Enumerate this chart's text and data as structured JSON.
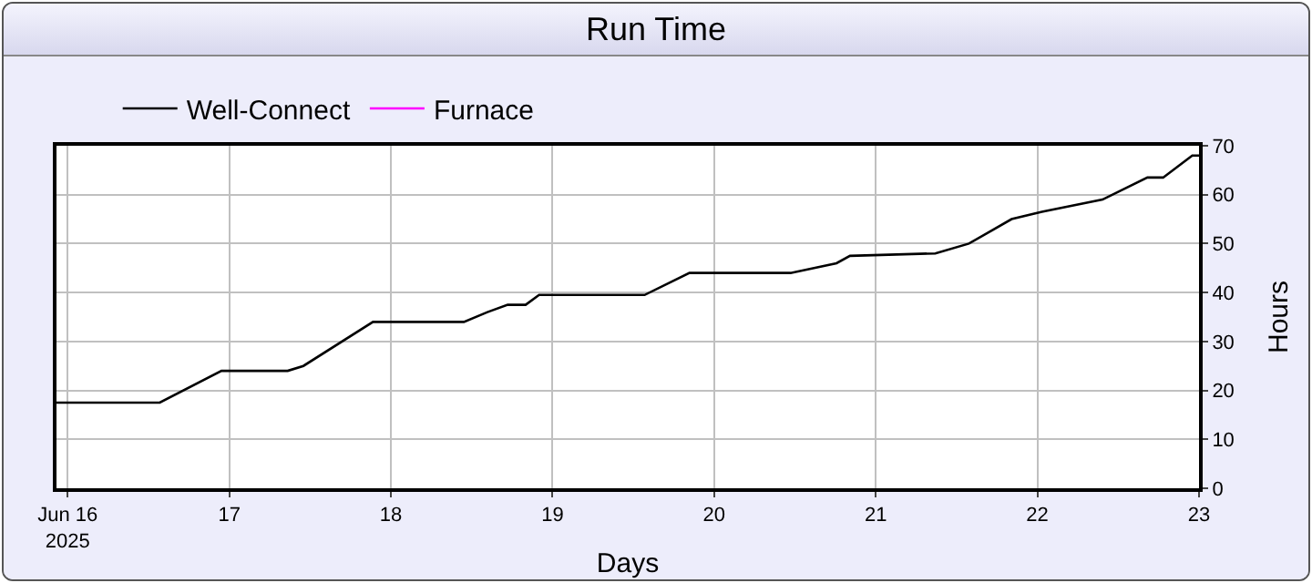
{
  "chart_data": {
    "type": "line",
    "title": "Run Time",
    "xlabel": "Days",
    "ylabel": "Hours",
    "x": [
      "2025-06-15T22:20",
      "2025-06-16T13:40",
      "2025-06-16T22:50",
      "2025-06-17T08:40",
      "2025-06-17T11:00",
      "2025-06-17T21:20",
      "2025-06-18T10:50",
      "2025-06-18T14:20",
      "2025-06-18T17:20",
      "2025-06-18T20:00",
      "2025-06-18T22:00",
      "2025-06-19T13:40",
      "2025-06-19T20:20",
      "2025-06-20T11:20",
      "2025-06-20T18:10",
      "2025-06-20T20:10",
      "2025-06-21T08:50",
      "2025-06-21T13:50",
      "2025-06-21T20:10",
      "2025-06-22T00:40",
      "2025-06-22T09:40",
      "2025-06-22T16:20",
      "2025-06-22T18:40",
      "2025-06-22T23:00",
      "2025-06-23T00:00"
    ],
    "series": [
      {
        "name": "Well-Connect",
        "color": "#000000",
        "values": [
          17.5,
          17.5,
          24,
          24,
          25,
          34,
          34,
          36,
          37.5,
          37.5,
          39.5,
          39.5,
          44,
          44,
          46,
          47.5,
          48,
          50,
          55,
          56.5,
          59,
          63.5,
          63.5,
          68,
          68
        ]
      },
      {
        "name": "Furnace",
        "color": "#ff00ff",
        "values": [
          null,
          null,
          null,
          null,
          null,
          null,
          null,
          null,
          null,
          null,
          null,
          null,
          null,
          null,
          null,
          null,
          null,
          null,
          null,
          null,
          null,
          null,
          null,
          null,
          null
        ]
      }
    ],
    "xlim": [
      "2025-06-15T22:20",
      "2025-06-23T00:00"
    ],
    "xticks": [
      {
        "value": "2025-06-16",
        "label": "Jun 16\n2025"
      },
      {
        "value": "2025-06-17",
        "label": "17"
      },
      {
        "value": "2025-06-18",
        "label": "18"
      },
      {
        "value": "2025-06-19",
        "label": "19"
      },
      {
        "value": "2025-06-20",
        "label": "20"
      },
      {
        "value": "2025-06-21",
        "label": "21"
      },
      {
        "value": "2025-06-22",
        "label": "22"
      },
      {
        "value": "2025-06-23",
        "label": "23"
      }
    ],
    "ylim": [
      0,
      70
    ],
    "yticks": [
      0,
      10,
      20,
      30,
      40,
      50,
      60,
      70
    ],
    "grid": true,
    "legend": "top left",
    "marker": "none",
    "line_style": "solid"
  }
}
